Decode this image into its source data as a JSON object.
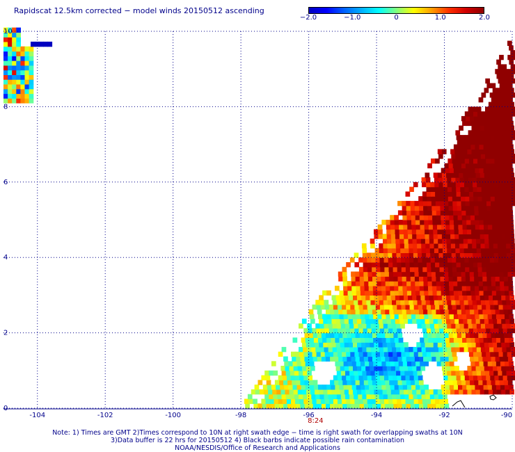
{
  "title": "Rapidscat 12.5km corrected − model winds 20150512 ascending",
  "colorbar": {
    "min": -2.0,
    "max": 2.0,
    "ticks": [
      "−2.0",
      "−1.0",
      "0",
      "1.0",
      "2.0"
    ],
    "tick_values": [
      -2.0,
      -1.0,
      0,
      1.0,
      2.0
    ]
  },
  "chart_data": {
    "type": "heatmap",
    "x_ticks": [
      "-104",
      "-102",
      "-100",
      "-98",
      "-96",
      "-94",
      "-92",
      "-90"
    ],
    "x_tick_values": [
      -104,
      -102,
      -100,
      -98,
      -96,
      -94,
      -92,
      -90
    ],
    "y_ticks": [
      "0",
      "2",
      "4",
      "6",
      "8",
      "10"
    ],
    "y_tick_values": [
      0,
      2,
      4,
      6,
      8,
      10
    ],
    "xlim": [
      -105,
      -90
    ],
    "ylim": [
      0,
      10
    ],
    "grid": true,
    "time_label": "8:24",
    "time_label_lon": -95.8
  },
  "notes": [
    "Note: 1) Times are GMT 2)Times correspond to 10N at right swath edge − time is right swath for overlapping swaths at 10N",
    "3)Data buffer is 22 hrs for 20150512 4) Black barbs indicate possible rain contamination",
    "NOAA/NESDIS/Office of Research and Applications"
  ]
}
